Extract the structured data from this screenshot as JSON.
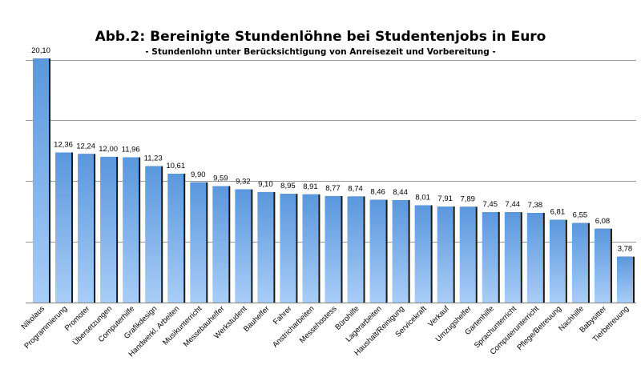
{
  "chart_data": {
    "type": "bar",
    "title": "Abb.2: Bereinigte Stundenlöhne bei Studentenjobs in Euro",
    "subtitle": "- Stundenlohn unter Berücksichtigung von Anreisezeit und Vorbereitung -",
    "xlabel": "",
    "ylabel": "",
    "ylim": [
      0,
      20.5
    ],
    "grid": true,
    "bar_color": "#5a97dc",
    "bar_highlight_color": "#a9cdf7",
    "bar_shadow_color": "#1a1a1a",
    "categories": [
      "Nikolaus",
      "Programmierung",
      "Promoter",
      "Übersetzungen",
      "Computerhilfe",
      "Grafikdesign",
      "Handwerkl. Arbeiten",
      "Musikunterricht",
      "Messebauhelfer",
      "Werkstudent",
      "Bauhelfer",
      "Fahrer",
      "Anstricharbeiten",
      "Messehostess",
      "Bürohilfe",
      "Lagerarbeiten",
      "Haushalt/Reinigung",
      "Servicekraft",
      "Verkauf",
      "Umzugshelfer",
      "Gartenhilfe",
      "Sprachunterricht",
      "Computerunterricht",
      "Pflege/Betreuung",
      "Nachhilfe",
      "Babysitter",
      "Tierbetreuung"
    ],
    "values": [
      20.1,
      12.36,
      12.24,
      12.0,
      11.96,
      11.23,
      10.61,
      9.9,
      9.59,
      9.32,
      9.1,
      8.95,
      8.91,
      8.77,
      8.74,
      8.46,
      8.44,
      8.01,
      7.91,
      7.89,
      7.45,
      7.44,
      7.38,
      6.81,
      6.55,
      6.08,
      3.78
    ],
    "value_labels": [
      "20,10",
      "12,36",
      "12,24",
      "12,00",
      "11,96",
      "11,23",
      "10,61",
      "9,90",
      "9,59",
      "9,32",
      "9,10",
      "8,95",
      "8,91",
      "8,77",
      "8,74",
      "8,46",
      "8,44",
      "8,01",
      "7,91",
      "7,89",
      "7,45",
      "7,44",
      "7,38",
      "6,81",
      "6,55",
      "6,08",
      "3,78"
    ]
  }
}
